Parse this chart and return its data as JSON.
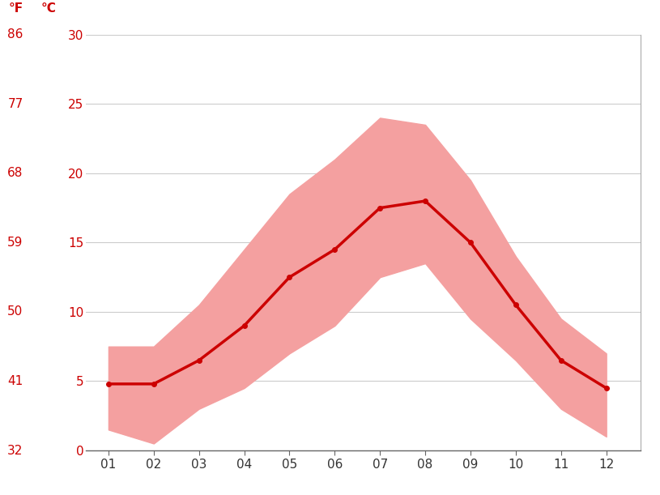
{
  "months": [
    1,
    2,
    3,
    4,
    5,
    6,
    7,
    8,
    9,
    10,
    11,
    12
  ],
  "month_labels": [
    "01",
    "02",
    "03",
    "04",
    "05",
    "06",
    "07",
    "08",
    "09",
    "10",
    "11",
    "12"
  ],
  "mean_temps": [
    4.8,
    4.8,
    6.5,
    9.0,
    12.5,
    14.5,
    17.5,
    18.0,
    15.0,
    10.5,
    6.5,
    4.5
  ],
  "max_temps": [
    7.5,
    7.5,
    10.5,
    14.5,
    18.5,
    21.0,
    24.0,
    23.5,
    19.5,
    14.0,
    9.5,
    7.0
  ],
  "min_temps": [
    1.5,
    0.5,
    3.0,
    4.5,
    7.0,
    9.0,
    12.5,
    13.5,
    9.5,
    6.5,
    3.0,
    1.0
  ],
  "ylim": [
    0,
    30
  ],
  "yticks_c": [
    0,
    5,
    10,
    15,
    20,
    25,
    30
  ],
  "yticks_f": [
    32,
    41,
    50,
    59,
    68,
    77,
    86
  ],
  "mean_color": "#cc0000",
  "band_color": "#f4a0a0",
  "line_width": 2.5,
  "marker": "o",
  "marker_size": 4,
  "background_color": "#ffffff",
  "grid_color": "#cccccc",
  "label_color": "#cc0000",
  "tick_label_color": "#333333",
  "left_label_f": "°F",
  "left_label_c": "°C"
}
